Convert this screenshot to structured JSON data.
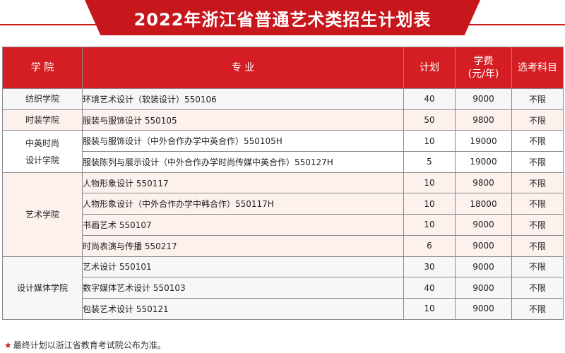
{
  "title": "2022年浙江省普通艺术类招生计划表",
  "headers": {
    "college": "学 院",
    "major": "专 业",
    "plan": "计划",
    "fee_line1": "学费",
    "fee_line2": "(元/年)",
    "subject": "选考科目"
  },
  "colleges": [
    {
      "name": "纺织学院",
      "rows": [
        {
          "major": "环境艺术设计（软装设计）550106",
          "plan": "40",
          "fee": "9000",
          "subject": "不限"
        }
      ]
    },
    {
      "name": "时装学院",
      "rows": [
        {
          "major": "服装与服饰设计 550105",
          "plan": "50",
          "fee": "9800",
          "subject": "不限"
        }
      ]
    },
    {
      "name_line1": "中英时尚",
      "name_line2": "设计学院",
      "rows": [
        {
          "major": "服装与服饰设计（中外合作办学中英合作）550105H",
          "plan": "10",
          "fee": "19000",
          "subject": "不限"
        },
        {
          "major": "服装陈列与展示设计（中外合作办学时尚传媒中英合作）550127H",
          "plan": "5",
          "fee": "19000",
          "subject": "不限"
        }
      ]
    },
    {
      "name": "艺术学院",
      "rows": [
        {
          "major": "人物形象设计 550117",
          "plan": "10",
          "fee": "9800",
          "subject": "不限"
        },
        {
          "major": "人物形象设计（中外合作办学中韩合作）550117H",
          "plan": "10",
          "fee": "18000",
          "subject": "不限"
        },
        {
          "major": "书画艺术 550107",
          "plan": "10",
          "fee": "9000",
          "subject": "不限"
        },
        {
          "major": "时尚表演与传播 550217",
          "plan": "6",
          "fee": "9000",
          "subject": "不限"
        }
      ]
    },
    {
      "name": "设计媒体学院",
      "rows": [
        {
          "major": "艺术设计 550101",
          "plan": "30",
          "fee": "9000",
          "subject": "不限"
        },
        {
          "major": "数字媒体艺术设计 550103",
          "plan": "40",
          "fee": "9000",
          "subject": "不限"
        },
        {
          "major": "包装艺术设计 550121",
          "plan": "10",
          "fee": "9000",
          "subject": "不限"
        }
      ]
    }
  ],
  "footnote": {
    "star": "★",
    "text": "最终计划以浙江省教育考试院公布为准。"
  },
  "colors": {
    "accent": "#c8161d",
    "header_bg": "#d51e23",
    "row_pink": "#fdf1ee",
    "row_gray": "#f6f6f7"
  }
}
